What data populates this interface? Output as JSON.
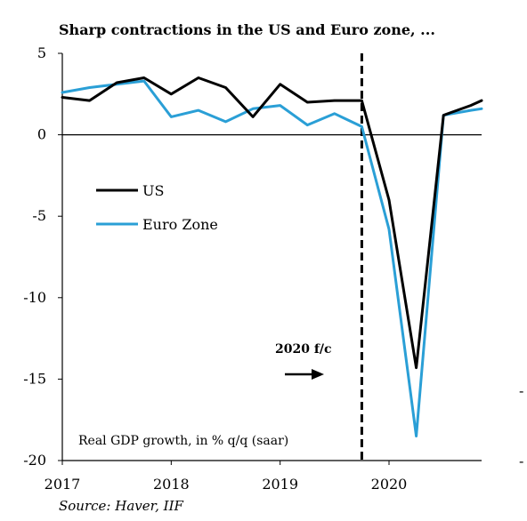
{
  "chart_data": {
    "type": "line",
    "title": "Sharp contractions in the US and Euro zone, ...",
    "note": "Real GDP growth, in % q/q (saar)",
    "forecast_label": "2020 f/c",
    "source": "Source: Haver, IIF",
    "ylim": [
      -20,
      5
    ],
    "yticks": [
      5,
      0,
      -5,
      -10,
      -15,
      -20
    ],
    "ytick_labels": [
      "5",
      "0",
      "-5",
      "-10",
      "-15",
      "-20"
    ],
    "xlim": [
      2017.0,
      2020.85
    ],
    "xticks": [
      2017.0,
      2018.0,
      2019.0,
      2020.0
    ],
    "xtick_labels": [
      "2017",
      "2018",
      "2019",
      "2020"
    ],
    "forecast_x": 2019.75,
    "legend_position": "left-middle",
    "grid": false,
    "series": [
      {
        "name": "US",
        "color": "#000000",
        "x": [
          2017.0,
          2017.25,
          2017.5,
          2017.75,
          2018.0,
          2018.25,
          2018.5,
          2018.75,
          2019.0,
          2019.25,
          2019.5,
          2019.75,
          2020.0,
          2020.25,
          2020.5,
          2020.75,
          2020.85
        ],
        "y": [
          2.3,
          2.1,
          3.2,
          3.5,
          2.5,
          3.5,
          2.9,
          1.1,
          3.1,
          2.0,
          2.1,
          2.1,
          -4.0,
          -14.3,
          1.2,
          1.8,
          2.1
        ]
      },
      {
        "name": "Euro Zone",
        "color": "#2A9FD6",
        "x": [
          2017.0,
          2017.25,
          2017.5,
          2017.75,
          2018.0,
          2018.25,
          2018.5,
          2018.75,
          2019.0,
          2019.25,
          2019.5,
          2019.75,
          2020.0,
          2020.25,
          2020.5,
          2020.75,
          2020.85
        ],
        "y": [
          2.6,
          2.9,
          3.1,
          3.3,
          1.1,
          1.5,
          0.8,
          1.6,
          1.8,
          0.6,
          1.3,
          0.5,
          -5.8,
          -18.5,
          1.2,
          1.5,
          1.6
        ]
      }
    ]
  }
}
